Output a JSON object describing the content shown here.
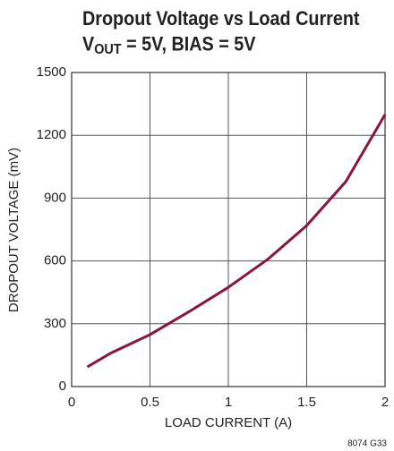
{
  "chart_data": {
    "type": "line",
    "title": "Dropout Voltage vs Load Current",
    "subtitle": [
      "V",
      "OUT",
      " = 5V, BIAS = 5V"
    ],
    "xlabel": "LOAD CURRENT (A)",
    "ylabel": "DROPOUT VOLTAGE (mV)",
    "footnote": "8074 G33",
    "x": [
      0.1,
      0.25,
      0.5,
      0.75,
      1,
      1.25,
      1.5,
      1.75,
      2
    ],
    "series": [
      {
        "name": "Dropout Voltage",
        "color": "#8b1538",
        "values": [
          94,
          160,
          248,
          358,
          474,
          607,
          769,
          979,
          1299
        ]
      }
    ],
    "xlim": [
      0,
      2
    ],
    "xticks": [
      0,
      0.5,
      1,
      1.5,
      2
    ],
    "ylim": [
      0,
      1500
    ],
    "yticks": [
      0,
      300,
      600,
      900,
      1200,
      1500
    ],
    "grid": true
  }
}
